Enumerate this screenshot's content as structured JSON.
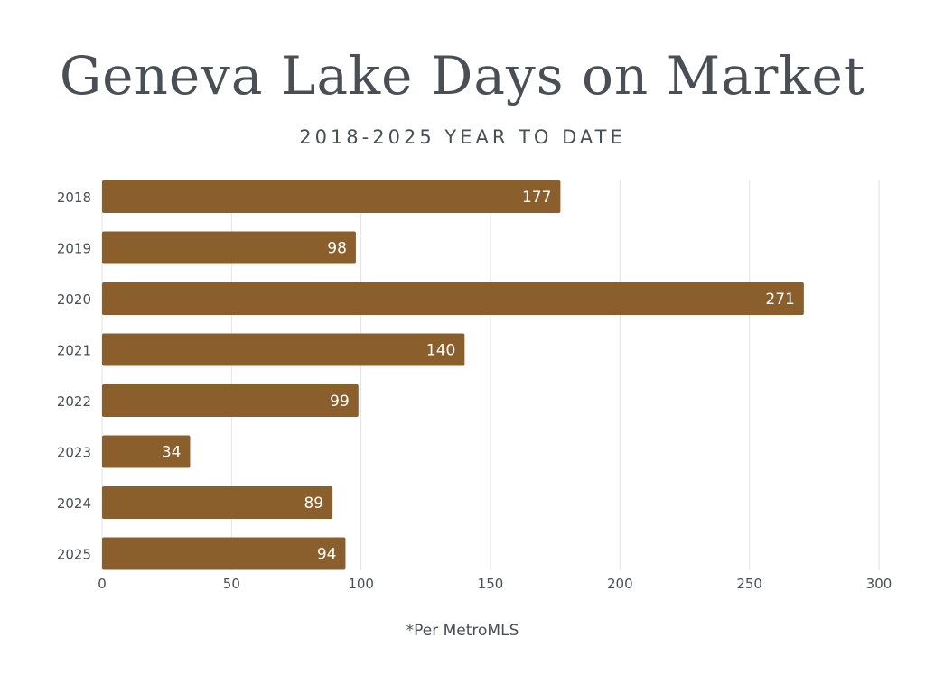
{
  "header": {
    "title": "Geneva Lake Days on Market",
    "subtitle": "2018-2025 YEAR TO DATE"
  },
  "footer": {
    "note": "*Per MetroMLS"
  },
  "colors": {
    "bar": "#8a5f2c",
    "grid": "#e2e2e2",
    "text": "#4a4f55",
    "bar_label": "#ffffff"
  },
  "chart_data": {
    "type": "bar",
    "orientation": "horizontal",
    "title": "Geneva Lake Days on Market",
    "subtitle": "2018-2025 YEAR TO DATE",
    "categories": [
      "2018",
      "2019",
      "2020",
      "2021",
      "2022",
      "2023",
      "2024",
      "2025"
    ],
    "values": [
      177,
      98,
      271,
      140,
      99,
      34,
      89,
      94
    ],
    "xlim": [
      0,
      300
    ],
    "xticks": [
      0,
      50,
      100,
      150,
      200,
      250,
      300
    ],
    "xlabel": "",
    "ylabel": "",
    "grid": "vertical",
    "legend": "none",
    "data_labels": "inside-end"
  }
}
